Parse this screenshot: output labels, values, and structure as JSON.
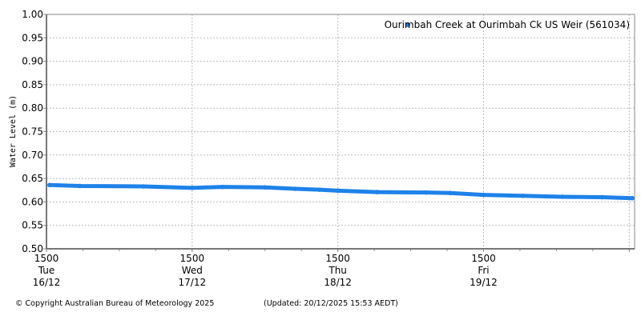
{
  "chart_data": {
    "type": "scatter",
    "title": "",
    "ylabel": "Water Level (m)",
    "xlabel": "",
    "ylim": [
      0.5,
      1.0
    ],
    "xlim": [
      "2025-12-16 15:00",
      "2025-12-20 15:53"
    ],
    "yticks": [
      "0.50",
      "0.55",
      "0.60",
      "0.65",
      "0.70",
      "0.75",
      "0.80",
      "0.85",
      "0.90",
      "0.95",
      "1.00"
    ],
    "xticks": [
      {
        "time": "2025-12-16 15:00",
        "lines": [
          "1500",
          "Tue",
          "16/12"
        ]
      },
      {
        "time": "2025-12-17 15:00",
        "lines": [
          "1500",
          "Wed",
          "17/12"
        ]
      },
      {
        "time": "2025-12-18 15:00",
        "lines": [
          "1500",
          "Thu",
          "18/12"
        ]
      },
      {
        "time": "2025-12-19 15:00",
        "lines": [
          "1500",
          "Fri",
          "19/12"
        ]
      },
      {
        "time": "2025-12-20 15:00",
        "lines": []
      }
    ],
    "grid": true,
    "legend_position": "top-right",
    "series": [
      {
        "name": "Ourimbah Creek at Ourimbah Ck US Weir (561034)",
        "color": "#1e82e8",
        "points": [
          {
            "t": "2025-12-16 15:30",
            "y": 0.636
          },
          {
            "t": "2025-12-16 20:30",
            "y": 0.634
          },
          {
            "t": "2025-12-17 07:00",
            "y": 0.633
          },
          {
            "t": "2025-12-17 15:00",
            "y": 0.63
          },
          {
            "t": "2025-12-17 20:00",
            "y": 0.632
          },
          {
            "t": "2025-12-18 03:00",
            "y": 0.631
          },
          {
            "t": "2025-12-18 08:00",
            "y": 0.628
          },
          {
            "t": "2025-12-18 12:00",
            "y": 0.626
          },
          {
            "t": "2025-12-18 15:00",
            "y": 0.624
          },
          {
            "t": "2025-12-18 21:30",
            "y": 0.621
          },
          {
            "t": "2025-12-19 05:30",
            "y": 0.62
          },
          {
            "t": "2025-12-19 09:30",
            "y": 0.619
          },
          {
            "t": "2025-12-19 15:00",
            "y": 0.615
          },
          {
            "t": "2025-12-19 21:30",
            "y": 0.613
          },
          {
            "t": "2025-12-20 04:00",
            "y": 0.611
          },
          {
            "t": "2025-12-20 10:30",
            "y": 0.61
          },
          {
            "t": "2025-12-20 15:30",
            "y": 0.608
          }
        ]
      }
    ]
  },
  "footer": {
    "copyright": "© Copyright Australian Bureau of Meteorology 2025",
    "updated": "(Updated: 20/12/2025 15:53 AEDT)"
  }
}
